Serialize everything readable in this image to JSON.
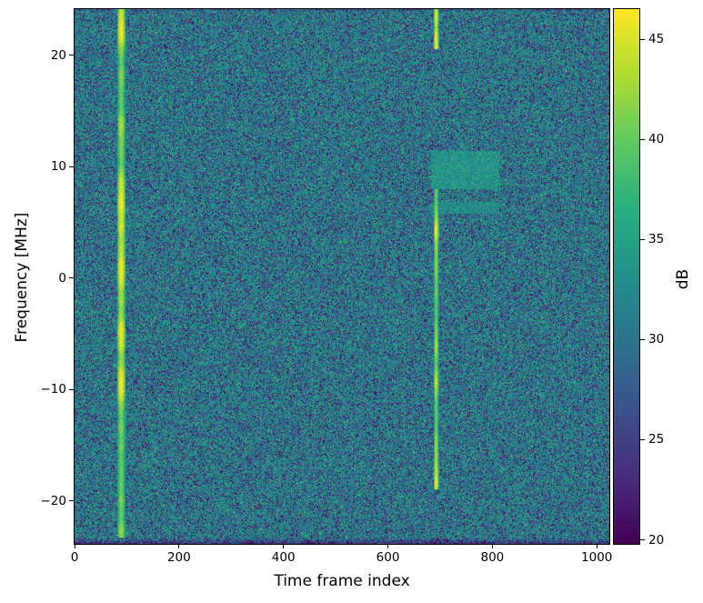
{
  "figure": {
    "kind": "spectrogram-plot",
    "background": "#ffffff",
    "spine_color": "#000000"
  },
  "chart_data": {
    "type": "heatmap",
    "title": "",
    "xlabel": "Time frame index",
    "ylabel": "Frequency [MHz]",
    "colorbar_label": "dB",
    "xlim": [
      0,
      1024
    ],
    "ylim": [
      -23.84,
      24.16
    ],
    "clim_db": [
      19.8,
      46.5
    ],
    "grid": false,
    "xticks": [
      {
        "value": 0,
        "label": "0"
      },
      {
        "value": 200,
        "label": "200"
      },
      {
        "value": 400,
        "label": "400"
      },
      {
        "value": 600,
        "label": "600"
      },
      {
        "value": 800,
        "label": "800"
      },
      {
        "value": 1000,
        "label": "1000"
      }
    ],
    "yticks": [
      {
        "value": 20,
        "label": "20"
      },
      {
        "value": 10,
        "label": "10"
      },
      {
        "value": 0,
        "label": "0"
      },
      {
        "value": -10,
        "label": "−10"
      },
      {
        "value": -20,
        "label": "−20"
      }
    ],
    "colorbar_ticks": [
      {
        "value": 45,
        "label": "45"
      },
      {
        "value": 40,
        "label": "40"
      },
      {
        "value": 35,
        "label": "35"
      },
      {
        "value": 30,
        "label": "30"
      },
      {
        "value": 25,
        "label": "25"
      },
      {
        "value": 20,
        "label": "20"
      }
    ],
    "colormap": {
      "name": "viridis",
      "stops": [
        "#440154",
        "#472d7b",
        "#3b528b",
        "#2c728e",
        "#21918c",
        "#28ae80",
        "#5ec962",
        "#addc30",
        "#fde725"
      ]
    },
    "noise_floor": {
      "model": "exponential-power-in-db",
      "median_db": 30.4,
      "speckle_range_db": [
        20,
        37
      ]
    },
    "features": [
      {
        "name": "wideband-burst-1",
        "type": "vertical-burst",
        "x_range": [
          82,
          97
        ],
        "freq_range_mhz": [
          -23.2,
          24.16
        ],
        "power_db_range": [
          35,
          47.5
        ]
      },
      {
        "name": "wideband-burst-2-upper",
        "type": "vertical-burst",
        "x_range": [
          688,
          697
        ],
        "freq_range_mhz": [
          20.6,
          24.16
        ],
        "power_db_range": [
          35,
          47.5
        ]
      },
      {
        "name": "wideband-burst-2-main",
        "type": "vertical-burst",
        "x_range": [
          688,
          697
        ],
        "freq_range_mhz": [
          -18.9,
          8.0
        ],
        "power_db_range": [
          35,
          47.5
        ]
      },
      {
        "name": "narrowband-block",
        "type": "block",
        "x_range": [
          684,
          810
        ],
        "freq_range_mhz": [
          8.0,
          11.5
        ],
        "power_db_range": [
          29,
          36
        ]
      },
      {
        "name": "narrowband-subband",
        "type": "block",
        "x_range": [
          684,
          810
        ],
        "freq_range_mhz": [
          5.8,
          6.9
        ],
        "power_db_range": [
          28,
          34.5
        ]
      }
    ]
  }
}
